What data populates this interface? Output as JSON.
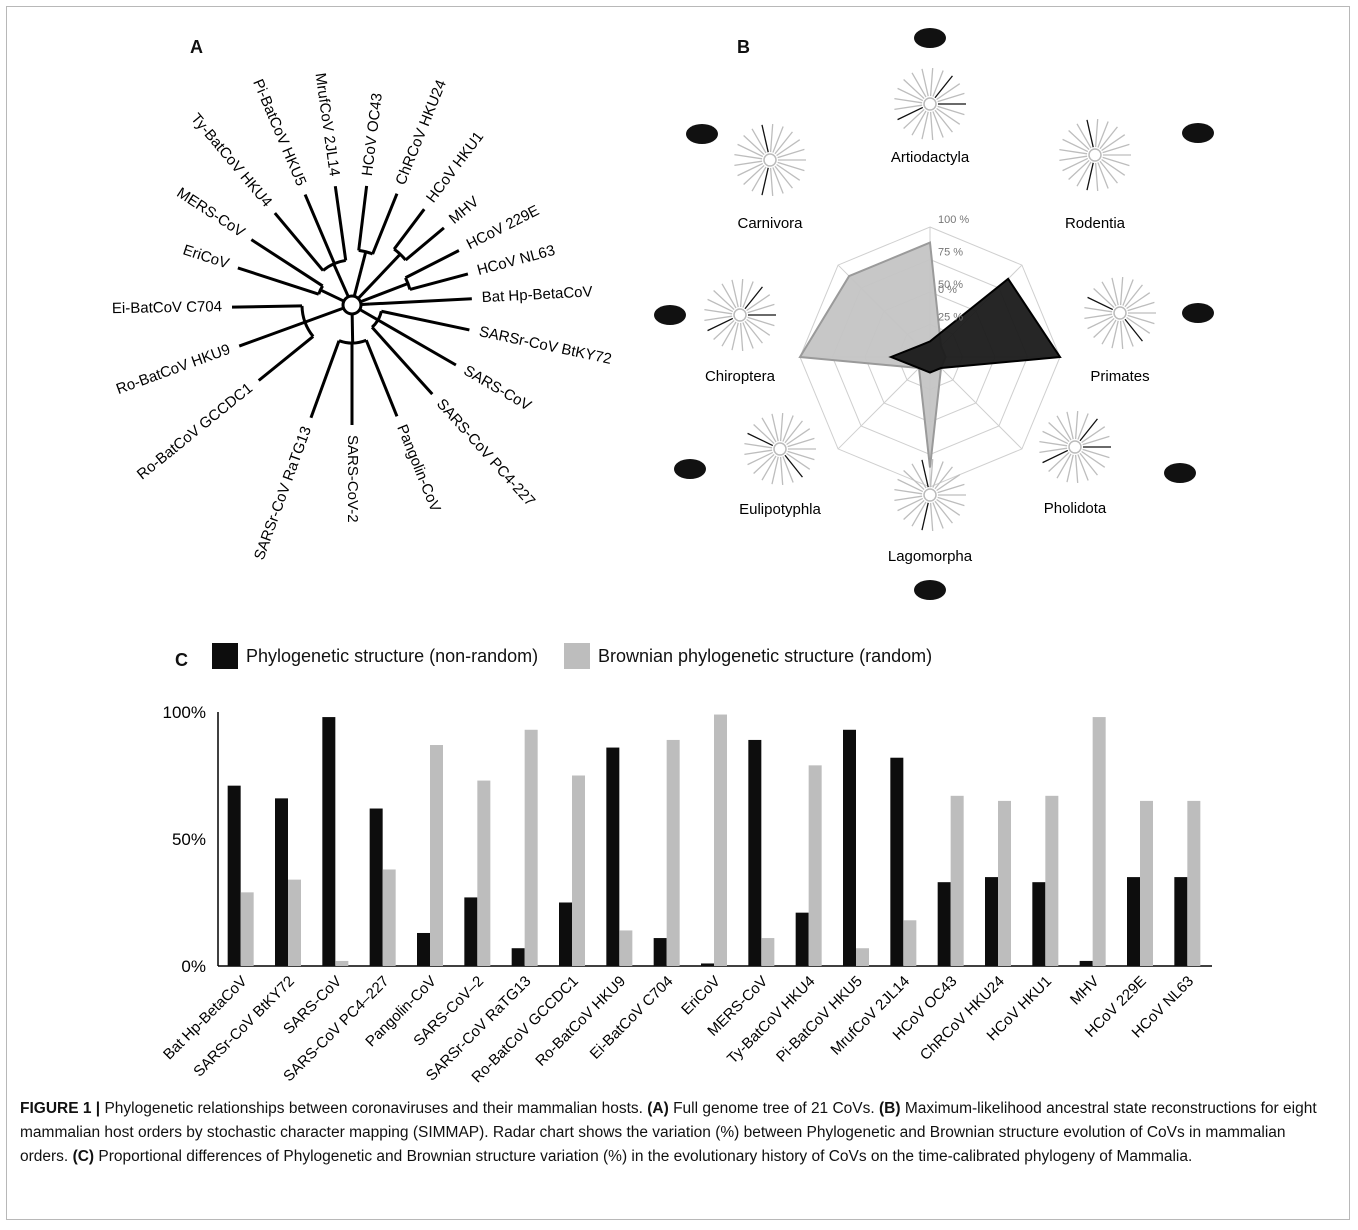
{
  "panels": {
    "a": "A",
    "b": "B",
    "c": "C"
  },
  "tree_leaves": [
    "Bat Hp-BetaCoV",
    "HCoV NL63",
    "HCoV 229E",
    "MHV",
    "HCoV HKU1",
    "ChRCoV HKU24",
    "HCoV OC43",
    "MrufCoV 2JL14",
    "Pi-BatCoV HKU5",
    "Ty-BatCoV HKU4",
    "MERS-CoV",
    "EriCoV",
    "Ei-BatCoV C704",
    "Ro-BatCoV HKU9",
    "Ro-BatCoV GCCDC1",
    "SARSr-CoV RaTG13",
    "SARS-CoV-2",
    "Pangolin-CoV",
    "SARS-CoV PC4-227",
    "SARS-CoV",
    "SARSr-CoV BtKY72"
  ],
  "radar": {
    "orders": [
      "Artiodactyla",
      "Rodentia",
      "Primates",
      "Pholidota",
      "Lagomorpha",
      "Eulipotyphla",
      "Chiroptera",
      "Carnivora"
    ],
    "icons": [
      "camel-icon",
      "rodent-icon",
      "monkey-icon",
      "pangolin-icon",
      "rabbit-icon",
      "hedgehog-icon",
      "bat-icon",
      "cat-icon"
    ],
    "ticks": [
      "0 %",
      "25 %",
      "50 %",
      "75 %",
      "100 %"
    ],
    "phylogenetic": [
      12,
      85,
      100,
      0,
      0,
      10,
      30,
      0
    ],
    "brownian": [
      88,
      0,
      0,
      0,
      85,
      0,
      100,
      88
    ]
  },
  "chart_data": {
    "type": "bar",
    "categories": [
      "Bat Hp-BetaCoV",
      "SARSr-CoV BtKY72",
      "SARS-CoV",
      "SARS-CoV PC4–227",
      "Pangolin-CoV",
      "SARS-CoV–2",
      "SARSr-CoV RaTG13",
      "Ro-BatCoV GCCDC1",
      "Ro-BatCoV HKU9",
      "Ei-BatCoV C704",
      "EriCoV",
      "MERS-CoV",
      "Ty-BatCoV HKU4",
      "Pi-BatCoV HKU5",
      "MrufCoV 2JL14",
      "HCoV OC43",
      "ChRCoV HKU24",
      "HCoV HKU1",
      "MHV",
      "HCoV 229E",
      "HCoV NL63"
    ],
    "series": [
      {
        "name": "Phylogenetic structure (non-random)",
        "color": "#0d0d0d",
        "values": [
          71,
          66,
          98,
          62,
          13,
          27,
          7,
          25,
          86,
          11,
          1,
          89,
          21,
          93,
          82,
          33,
          35,
          33,
          2,
          35,
          35
        ]
      },
      {
        "name": "Brownian phylogenetic structure (random)",
        "color": "#bdbdbd",
        "values": [
          29,
          34,
          2,
          38,
          87,
          73,
          93,
          75,
          14,
          89,
          99,
          11,
          79,
          7,
          18,
          67,
          65,
          67,
          98,
          65,
          65
        ]
      }
    ],
    "yticks": [
      "0%",
      "50%",
      "100%"
    ],
    "ylim": [
      0,
      100
    ]
  },
  "caption": {
    "fig": "FIGURE 1 |",
    "p1": " Phylogenetic relationships between coronaviruses and their mammalian hosts. ",
    "a": "(A)",
    "p2": " Full genome tree of 21 CoVs. ",
    "b": "(B)",
    "p3": " Maximum-likelihood ancestral state reconstructions for eight mammalian host orders by stochastic character mapping (SIMMAP). Radar chart shows the variation (%) between Phylogenetic and Brownian structure evolution of CoVs in mammalian orders. ",
    "c": "(C)",
    "p4": " Proportional differences of Phylogenetic and Brownian structure variation (%) in the evolutionary history of CoVs on the time-calibrated phylogeny of Mammalia."
  }
}
